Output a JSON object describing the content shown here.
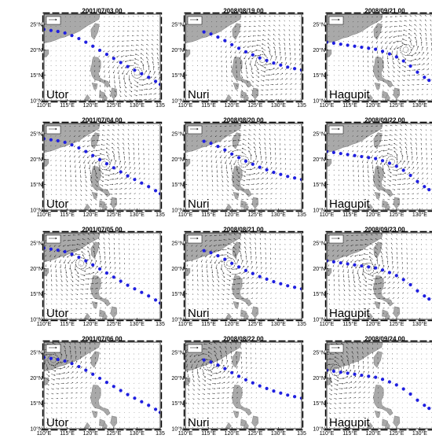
{
  "figure": {
    "columns": [
      {
        "storm": "Utor",
        "times": [
          "2001/07/03 00",
          "2001/07/04 00",
          "2001/07/05 00",
          "2001/07/06 00"
        ],
        "x_tick_labels": [
          "110°E",
          "115°E",
          "120°E",
          "125°E",
          "130°E",
          "135"
        ],
        "center_lonlat": [
          [
            130,
            15.5
          ],
          [
            123,
            19
          ],
          [
            118,
            21
          ],
          [
            112,
            23.5
          ]
        ]
      },
      {
        "storm": "Nuri",
        "times": [
          "2008/08/19 00",
          "2008/08/20 00",
          "2008/08/21 00",
          "2008/08/22 00"
        ],
        "x_tick_labels": [
          "110°E",
          "115°E",
          "120°E",
          "125°E",
          "130°E",
          "135"
        ],
        "center_lonlat": [
          [
            126.5,
            18
          ],
          [
            122.5,
            19.5
          ],
          [
            119.5,
            21
          ],
          [
            115,
            22.5
          ]
        ]
      },
      {
        "storm": "Hagupit",
        "times": [
          "2008/09/21 00",
          "2008/09/22 00",
          "2008/09/23 00",
          "2008/09/24 00"
        ],
        "x_tick_labels": [
          "110°E",
          "115°E",
          "120°E",
          "125°E",
          "130°E",
          "135°E"
        ],
        "center_lonlat": [
          [
            127,
            20
          ],
          [
            124,
            19.5
          ],
          [
            119,
            20
          ],
          [
            112,
            21.5
          ]
        ]
      }
    ],
    "y_tick_labels": [
      "10°N",
      "15°N",
      "20°N",
      "25°N"
    ],
    "track_color": "#1f1fe0",
    "land_color": "#a9a9a9",
    "arrow_color": "#1a1a1a",
    "legend_icon": "reference-wind-arrow-icon"
  },
  "chart_data": {
    "type": "scatter",
    "extent": {
      "lon": [
        110,
        135
      ],
      "lat": [
        10,
        27
      ]
    },
    "series": [
      {
        "name": "Utor",
        "track": [
          [
            110,
            24
          ],
          [
            111.5,
            23.8
          ],
          [
            113,
            23.6
          ],
          [
            114.5,
            23.3
          ],
          [
            116,
            22.8
          ],
          [
            117.5,
            22.2
          ],
          [
            119,
            21.5
          ],
          [
            120.5,
            20.7
          ],
          [
            122,
            19.9
          ],
          [
            123.5,
            19.1
          ],
          [
            125,
            18.3
          ],
          [
            126.5,
            17.5
          ],
          [
            128,
            16.7
          ],
          [
            129.5,
            16
          ],
          [
            131,
            15.3
          ],
          [
            132.5,
            14.6
          ],
          [
            134,
            13.8
          ],
          [
            135,
            13.2
          ]
        ]
      },
      {
        "name": "Nuri",
        "track": [
          [
            114,
            23.5
          ],
          [
            115.5,
            23.1
          ],
          [
            117,
            22.5
          ],
          [
            118.5,
            21.8
          ],
          [
            120,
            21
          ],
          [
            121.5,
            20.3
          ],
          [
            123,
            19.6
          ],
          [
            124.5,
            19
          ],
          [
            126,
            18.4
          ],
          [
            127.5,
            17.9
          ],
          [
            129,
            17.4
          ],
          [
            130.5,
            17
          ],
          [
            132,
            16.6
          ],
          [
            133.5,
            16.3
          ],
          [
            135,
            16
          ]
        ]
      },
      {
        "name": "Hagupit",
        "track": [
          [
            110,
            21.5
          ],
          [
            111.5,
            21.3
          ],
          [
            113,
            21.1
          ],
          [
            114.5,
            20.9
          ],
          [
            116,
            20.7
          ],
          [
            117.5,
            20.5
          ],
          [
            119,
            20.3
          ],
          [
            120.5,
            20.1
          ],
          [
            122,
            19.7
          ],
          [
            123.5,
            19.2
          ],
          [
            125,
            18.6
          ],
          [
            126.5,
            17.8
          ],
          [
            128,
            16.8
          ],
          [
            129.5,
            15.6
          ],
          [
            131,
            14.6
          ],
          [
            132,
            14
          ],
          [
            133,
            13.7
          ],
          [
            134,
            14
          ],
          [
            135,
            14.6
          ]
        ]
      }
    ]
  }
}
